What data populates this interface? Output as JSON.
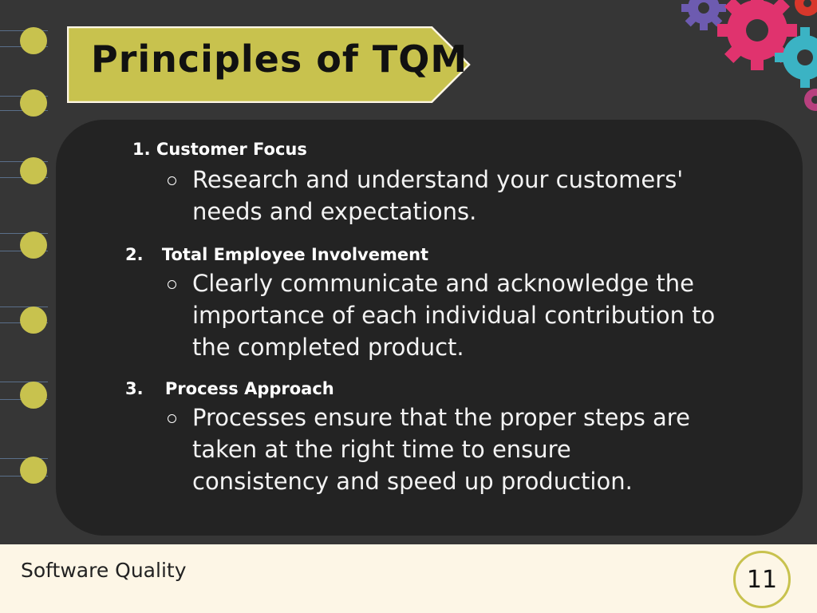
{
  "slide": {
    "title": "Principles of TQM",
    "items": [
      {
        "number": "1.",
        "heading": "Customer Focus",
        "bullet": [
          "Research and understand your customers'",
          "needs and expectations."
        ]
      },
      {
        "number": "2.",
        "heading": "Total Employee Involvement",
        "bullet": [
          "Clearly communicate and acknowledge the",
          "importance of each individual contribution to",
          "the completed product."
        ]
      },
      {
        "number": "3.",
        "heading": "Process Approach",
        "bullet": [
          "Processes ensure that the proper steps are",
          "taken at the right time to ensure",
          "consistency and speed up production."
        ]
      }
    ]
  },
  "footer": {
    "course": "Software Quality",
    "page_number": "11"
  },
  "colors": {
    "background": "#363636",
    "panel": "#232323",
    "accent": "#c8c24e",
    "footer": "#fdf6e6"
  },
  "decorations": [
    "gear-cluster-icon",
    "notebook-binding-holes"
  ]
}
